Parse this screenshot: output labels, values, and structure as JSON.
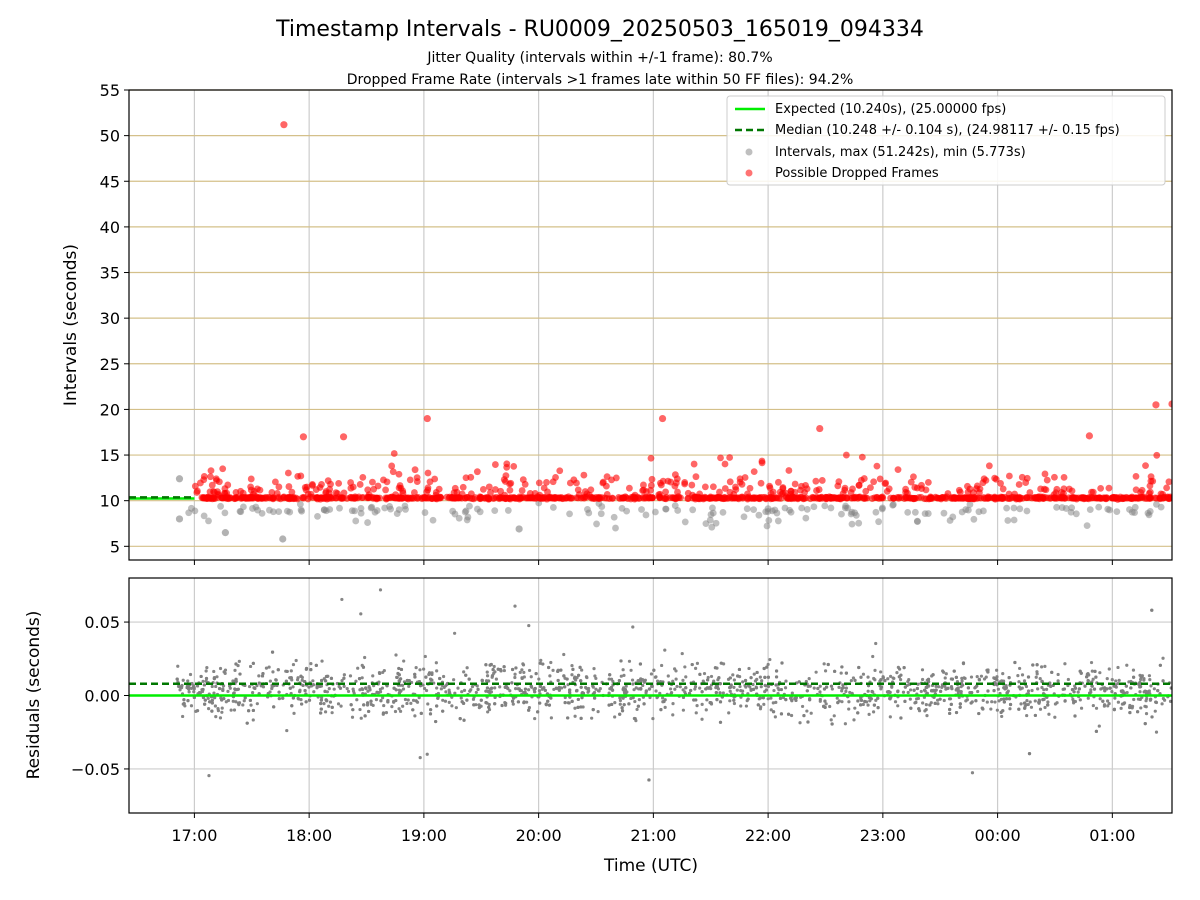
{
  "title": "Timestamp Intervals - RU0009_20250503_165019_094334",
  "subtitle_jitter": "Jitter Quality (intervals within +/-1 frame): 80.7%",
  "subtitle_dropped": "Dropped Frame Rate (intervals >1 frames late within 50 FF files): 94.2%",
  "colors": {
    "expected": "#00ee00",
    "median": "#007700",
    "intervals": "#7f7f7f",
    "dropped": "#ff0000",
    "grid_top": "#d4c08a",
    "grid_bottom": "#cccccc"
  },
  "chart_data": [
    {
      "type": "scatter",
      "name": "intervals",
      "ylabel": "Intervals (seconds)",
      "ylim": [
        3.5,
        55
      ],
      "yticks": [
        "5",
        "10",
        "15",
        "20",
        "25",
        "30",
        "35",
        "40",
        "45",
        "50",
        "55"
      ],
      "xlim_hours": [
        16.43,
        25.52
      ],
      "grid": true,
      "legend_position": "upper right",
      "legend": {
        "expected": "Expected (10.240s), (25.00000 fps)",
        "median": "Median (10.248 +/- 0.104 s), (24.98117 +/- 0.15 fps)",
        "intervals": "Intervals, max (51.242s), min (5.773s)",
        "dropped": "Possible Dropped Frames"
      },
      "expected_y": 10.24,
      "median_y": 10.248,
      "max_interval": 51.242,
      "min_interval": 5.773,
      "expected_line_end_hour": 17.0,
      "dense_band_y": 10.3,
      "dense_band_x_range_hours": [
        16.9,
        25.52
      ],
      "highlight_points": [
        {
          "x": 17.78,
          "y": 51.2,
          "series": "dropped"
        },
        {
          "x": 19.03,
          "y": 19.0,
          "series": "dropped"
        },
        {
          "x": 21.08,
          "y": 19.0,
          "series": "dropped"
        },
        {
          "x": 25.38,
          "y": 20.5,
          "series": "dropped"
        },
        {
          "x": 25.52,
          "y": 20.6,
          "series": "dropped"
        },
        {
          "x": 22.45,
          "y": 17.9,
          "series": "dropped"
        },
        {
          "x": 24.8,
          "y": 17.1,
          "series": "dropped"
        },
        {
          "x": 17.95,
          "y": 17.0,
          "series": "dropped"
        },
        {
          "x": 18.3,
          "y": 17.0,
          "series": "dropped"
        },
        {
          "x": 17.77,
          "y": 5.8,
          "series": "intervals"
        },
        {
          "x": 19.83,
          "y": 6.9,
          "series": "intervals"
        },
        {
          "x": 17.27,
          "y": 6.5,
          "series": "intervals"
        },
        {
          "x": 16.87,
          "y": 12.4,
          "series": "intervals"
        },
        {
          "x": 16.87,
          "y": 8.0,
          "series": "intervals"
        }
      ]
    },
    {
      "type": "scatter",
      "name": "residuals",
      "ylabel": "Residuals (seconds)",
      "xlabel": "Time (UTC)",
      "ylim": [
        -0.08,
        0.08
      ],
      "yticks": [
        "−0.05",
        "0.00",
        "0.05"
      ],
      "xticks": [
        "17:00",
        "18:00",
        "19:00",
        "20:00",
        "21:00",
        "22:00",
        "23:00",
        "00:00",
        "01:00"
      ],
      "expected_y": 0.0,
      "median_y": 0.008,
      "grid": true
    }
  ]
}
